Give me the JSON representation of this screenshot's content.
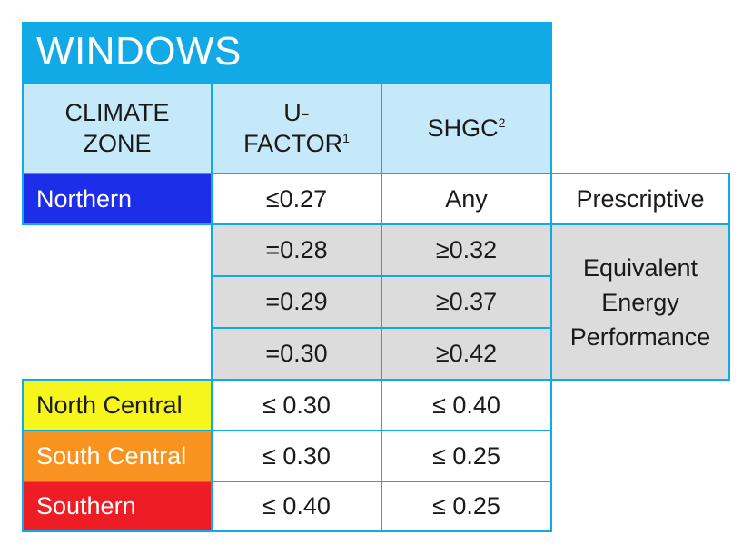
{
  "title": "WINDOWS",
  "headers": {
    "climate_zone_line1": "CLIMATE",
    "climate_zone_line2": "ZONE",
    "ufactor_line1": "U-",
    "ufactor_line2": "FACTOR",
    "ufactor_sup": "1",
    "shgc": "SHGC",
    "shgc_sup": "2"
  },
  "rows": {
    "northern": {
      "zone": "Northern",
      "ufactor": "≤0.27",
      "shgc": "Any",
      "path": "Prescriptive",
      "zone_color": "#1d2ee8"
    },
    "equiv1": {
      "ufactor": "=0.28",
      "shgc": "≥0.32"
    },
    "equiv2": {
      "ufactor": "=0.29",
      "shgc": "≥0.37"
    },
    "equiv3": {
      "ufactor": "=0.30",
      "shgc": "≥0.42"
    },
    "equivalent_path": {
      "line1": "Equivalent",
      "line2": "Energy",
      "line3": "Performance"
    },
    "north_central": {
      "zone": "North Central",
      "ufactor": "≤ 0.30",
      "shgc": "≤ 0.40",
      "zone_color": "#f6f51c"
    },
    "south_central": {
      "zone": "South Central",
      "ufactor": "≤ 0.30",
      "shgc": "≤ 0.25",
      "zone_color": "#f7931e"
    },
    "southern": {
      "zone": "Southern",
      "ufactor": "≤ 0.40",
      "shgc": "≤ 0.25",
      "zone_color": "#ee1c24"
    }
  },
  "colors": {
    "accent": "#11a9e6",
    "header_bg": "#c5e9f8",
    "grey_bg": "#dcdcdc"
  }
}
